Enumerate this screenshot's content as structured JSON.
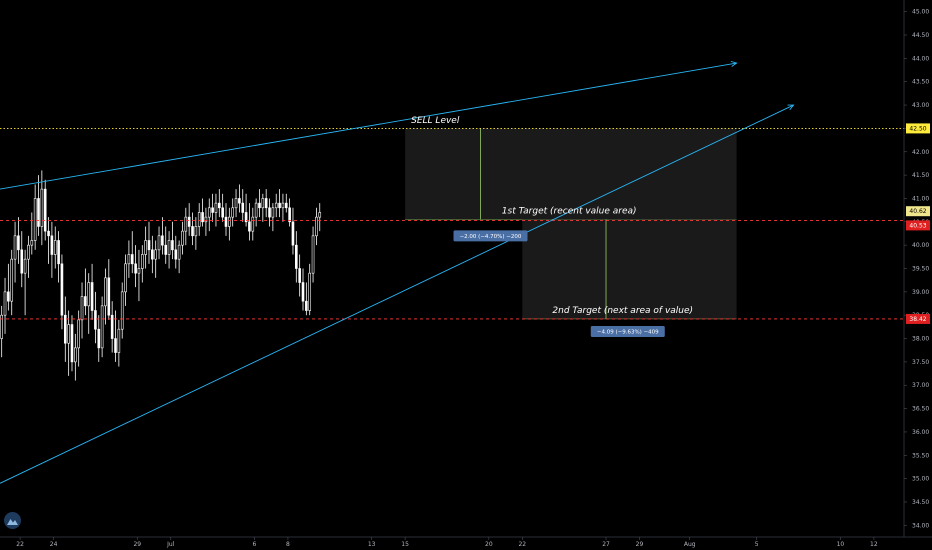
{
  "chart_data": {
    "type": "candlestick",
    "y_axis": {
      "position": "right",
      "range": [
        33.75,
        45.25
      ],
      "ticks": [
        "45.00",
        "44.50",
        "44.00",
        "43.50",
        "43.00",
        "42.50",
        "42.00",
        "41.50",
        "41.00",
        "40.50",
        "40.00",
        "39.50",
        "39.00",
        "38.50",
        "38.00",
        "37.50",
        "37.00",
        "36.50",
        "36.00",
        "35.50",
        "35.00",
        "34.50",
        "34.00"
      ]
    },
    "x_axis": {
      "ticks": [
        {
          "label": "22",
          "day": 22
        },
        {
          "label": "24",
          "day": 24
        },
        {
          "label": "29",
          "day": 29
        },
        {
          "label": "Jul",
          "day": 31
        },
        {
          "label": "6",
          "day": 36
        },
        {
          "label": "8",
          "day": 38
        },
        {
          "label": "13",
          "day": 43
        },
        {
          "label": "15",
          "day": 45
        },
        {
          "label": "20",
          "day": 50
        },
        {
          "label": "22",
          "day": 52
        },
        {
          "label": "27",
          "day": 57
        },
        {
          "label": "29",
          "day": 59
        },
        {
          "label": "Aug",
          "day": 62
        },
        {
          "label": "5",
          "day": 66
        },
        {
          "label": "10",
          "day": 71
        },
        {
          "label": "12",
          "day": 73
        }
      ],
      "range": [
        20.8,
        74.8
      ]
    },
    "candles": [
      {
        "day": 20.9,
        "o": 38.0,
        "h": 38.7,
        "l": 37.6,
        "c": 38.5
      },
      {
        "day": 21.1,
        "o": 38.5,
        "h": 39.3,
        "l": 38.1,
        "c": 39.0
      },
      {
        "day": 21.3,
        "o": 39.0,
        "h": 39.6,
        "l": 38.6,
        "c": 38.8
      },
      {
        "day": 21.5,
        "o": 38.8,
        "h": 39.9,
        "l": 38.5,
        "c": 39.7
      },
      {
        "day": 21.7,
        "o": 39.7,
        "h": 40.5,
        "l": 39.2,
        "c": 40.2
      },
      {
        "day": 21.9,
        "o": 40.2,
        "h": 40.6,
        "l": 39.6,
        "c": 39.9
      },
      {
        "day": 22.1,
        "o": 39.9,
        "h": 40.3,
        "l": 39.1,
        "c": 39.4
      },
      {
        "day": 22.3,
        "o": 39.4,
        "h": 39.9,
        "l": 38.5,
        "c": 39.7
      },
      {
        "day": 22.5,
        "o": 39.7,
        "h": 40.2,
        "l": 39.3,
        "c": 40.0
      },
      {
        "day": 22.7,
        "o": 40.0,
        "h": 40.7,
        "l": 39.8,
        "c": 40.1
      },
      {
        "day": 22.9,
        "o": 40.1,
        "h": 41.3,
        "l": 39.9,
        "c": 41.0
      },
      {
        "day": 23.1,
        "o": 41.0,
        "h": 41.5,
        "l": 40.2,
        "c": 40.4
      },
      {
        "day": 23.3,
        "o": 40.4,
        "h": 41.6,
        "l": 40.0,
        "c": 41.2
      },
      {
        "day": 23.5,
        "o": 41.2,
        "h": 41.4,
        "l": 40.1,
        "c": 40.3
      },
      {
        "day": 23.7,
        "o": 40.3,
        "h": 40.6,
        "l": 39.6,
        "c": 40.2
      },
      {
        "day": 23.9,
        "o": 40.2,
        "h": 40.5,
        "l": 39.3,
        "c": 39.8
      },
      {
        "day": 24.1,
        "o": 39.8,
        "h": 40.4,
        "l": 39.5,
        "c": 40.1
      },
      {
        "day": 24.3,
        "o": 40.1,
        "h": 40.3,
        "l": 39.2,
        "c": 39.6
      },
      {
        "day": 24.5,
        "o": 39.6,
        "h": 39.8,
        "l": 38.2,
        "c": 38.5
      },
      {
        "day": 24.7,
        "o": 38.5,
        "h": 38.9,
        "l": 37.5,
        "c": 37.9
      },
      {
        "day": 24.9,
        "o": 37.9,
        "h": 38.6,
        "l": 37.2,
        "c": 38.3
      },
      {
        "day": 25.1,
        "o": 38.3,
        "h": 38.5,
        "l": 37.3,
        "c": 37.5
      },
      {
        "day": 25.3,
        "o": 37.5,
        "h": 38.1,
        "l": 37.1,
        "c": 37.8
      },
      {
        "day": 25.5,
        "o": 37.8,
        "h": 38.6,
        "l": 37.4,
        "c": 38.4
      },
      {
        "day": 25.7,
        "o": 38.4,
        "h": 39.2,
        "l": 38.0,
        "c": 38.9
      },
      {
        "day": 25.9,
        "o": 38.9,
        "h": 39.5,
        "l": 38.5,
        "c": 38.7
      },
      {
        "day": 26.1,
        "o": 38.7,
        "h": 39.4,
        "l": 38.1,
        "c": 39.2
      },
      {
        "day": 26.3,
        "o": 39.2,
        "h": 39.6,
        "l": 38.4,
        "c": 38.6
      },
      {
        "day": 26.5,
        "o": 38.6,
        "h": 39.0,
        "l": 37.9,
        "c": 38.2
      },
      {
        "day": 26.7,
        "o": 38.2,
        "h": 38.5,
        "l": 37.5,
        "c": 37.8
      },
      {
        "day": 26.9,
        "o": 37.8,
        "h": 38.9,
        "l": 37.6,
        "c": 38.7
      },
      {
        "day": 27.1,
        "o": 38.7,
        "h": 39.5,
        "l": 38.3,
        "c": 39.3
      },
      {
        "day": 27.3,
        "o": 39.3,
        "h": 39.7,
        "l": 38.4,
        "c": 38.5
      },
      {
        "day": 27.5,
        "o": 38.5,
        "h": 38.8,
        "l": 37.7,
        "c": 38.0
      },
      {
        "day": 27.7,
        "o": 38.0,
        "h": 38.6,
        "l": 37.5,
        "c": 37.7
      },
      {
        "day": 27.9,
        "o": 37.7,
        "h": 38.4,
        "l": 37.4,
        "c": 38.2
      },
      {
        "day": 28.1,
        "o": 38.2,
        "h": 39.2,
        "l": 38.0,
        "c": 39.0
      },
      {
        "day": 28.3,
        "o": 39.0,
        "h": 39.8,
        "l": 38.7,
        "c": 39.6
      },
      {
        "day": 28.5,
        "o": 39.6,
        "h": 40.1,
        "l": 39.3,
        "c": 39.8
      },
      {
        "day": 28.7,
        "o": 39.8,
        "h": 40.3,
        "l": 39.4,
        "c": 39.6
      },
      {
        "day": 28.9,
        "o": 39.6,
        "h": 40.0,
        "l": 39.1,
        "c": 39.4
      },
      {
        "day": 29.1,
        "o": 39.4,
        "h": 39.9,
        "l": 38.8,
        "c": 39.5
      },
      {
        "day": 29.3,
        "o": 39.5,
        "h": 40.0,
        "l": 39.2,
        "c": 39.8
      },
      {
        "day": 29.5,
        "o": 39.8,
        "h": 40.4,
        "l": 39.5,
        "c": 40.1
      },
      {
        "day": 29.7,
        "o": 40.1,
        "h": 40.5,
        "l": 39.6,
        "c": 39.9
      },
      {
        "day": 29.9,
        "o": 39.9,
        "h": 40.2,
        "l": 39.4,
        "c": 39.7
      },
      {
        "day": 30.1,
        "o": 39.7,
        "h": 40.1,
        "l": 39.3,
        "c": 39.9
      },
      {
        "day": 30.3,
        "o": 39.9,
        "h": 40.4,
        "l": 39.7,
        "c": 40.2
      },
      {
        "day": 30.5,
        "o": 40.2,
        "h": 40.6,
        "l": 39.8,
        "c": 40.0
      },
      {
        "day": 30.7,
        "o": 40.0,
        "h": 40.4,
        "l": 39.6,
        "c": 39.8
      },
      {
        "day": 30.9,
        "o": 39.8,
        "h": 40.3,
        "l": 39.5,
        "c": 40.1
      },
      {
        "day": 31.1,
        "o": 40.1,
        "h": 40.5,
        "l": 39.7,
        "c": 39.9
      },
      {
        "day": 31.3,
        "o": 39.9,
        "h": 40.2,
        "l": 39.5,
        "c": 39.7
      },
      {
        "day": 31.5,
        "o": 39.7,
        "h": 40.1,
        "l": 39.4,
        "c": 40.0
      },
      {
        "day": 31.7,
        "o": 40.0,
        "h": 40.5,
        "l": 39.8,
        "c": 40.3
      },
      {
        "day": 31.9,
        "o": 40.3,
        "h": 40.8,
        "l": 40.0,
        "c": 40.6
      },
      {
        "day": 32.1,
        "o": 40.6,
        "h": 40.9,
        "l": 40.2,
        "c": 40.4
      },
      {
        "day": 32.3,
        "o": 40.4,
        "h": 40.7,
        "l": 40.0,
        "c": 40.2
      },
      {
        "day": 32.5,
        "o": 40.2,
        "h": 40.6,
        "l": 39.9,
        "c": 40.4
      },
      {
        "day": 32.7,
        "o": 40.4,
        "h": 40.9,
        "l": 40.2,
        "c": 40.7
      },
      {
        "day": 32.9,
        "o": 40.7,
        "h": 41.0,
        "l": 40.4,
        "c": 40.5
      },
      {
        "day": 33.1,
        "o": 40.5,
        "h": 40.8,
        "l": 40.2,
        "c": 40.6
      },
      {
        "day": 33.3,
        "o": 40.6,
        "h": 41.0,
        "l": 40.3,
        "c": 40.8
      },
      {
        "day": 33.5,
        "o": 40.8,
        "h": 41.1,
        "l": 40.5,
        "c": 40.7
      },
      {
        "day": 33.7,
        "o": 40.7,
        "h": 41.1,
        "l": 40.4,
        "c": 40.9
      },
      {
        "day": 33.9,
        "o": 40.9,
        "h": 41.2,
        "l": 40.6,
        "c": 40.8
      },
      {
        "day": 34.1,
        "o": 40.8,
        "h": 41.1,
        "l": 40.5,
        "c": 40.6
      },
      {
        "day": 34.3,
        "o": 40.6,
        "h": 40.9,
        "l": 40.2,
        "c": 40.4
      },
      {
        "day": 34.5,
        "o": 40.4,
        "h": 40.8,
        "l": 40.1,
        "c": 40.6
      },
      {
        "day": 34.7,
        "o": 40.6,
        "h": 41.0,
        "l": 40.4,
        "c": 40.8
      },
      {
        "day": 34.9,
        "o": 40.8,
        "h": 41.2,
        "l": 40.6,
        "c": 41.0
      },
      {
        "day": 35.1,
        "o": 41.0,
        "h": 41.3,
        "l": 40.7,
        "c": 40.9
      },
      {
        "day": 35.3,
        "o": 40.9,
        "h": 41.2,
        "l": 40.5,
        "c": 40.7
      },
      {
        "day": 35.5,
        "o": 40.7,
        "h": 41.1,
        "l": 40.4,
        "c": 40.5
      },
      {
        "day": 35.7,
        "o": 40.5,
        "h": 40.9,
        "l": 40.1,
        "c": 40.3
      },
      {
        "day": 35.9,
        "o": 40.3,
        "h": 40.8,
        "l": 40.1,
        "c": 40.6
      },
      {
        "day": 36.1,
        "o": 40.6,
        "h": 41.0,
        "l": 40.4,
        "c": 40.9
      },
      {
        "day": 36.3,
        "o": 40.9,
        "h": 41.2,
        "l": 40.6,
        "c": 40.8
      },
      {
        "day": 36.5,
        "o": 40.8,
        "h": 41.1,
        "l": 40.5,
        "c": 41.0
      },
      {
        "day": 36.7,
        "o": 41.0,
        "h": 41.2,
        "l": 40.6,
        "c": 40.8
      },
      {
        "day": 36.9,
        "o": 40.8,
        "h": 41.0,
        "l": 40.4,
        "c": 40.6
      },
      {
        "day": 37.1,
        "o": 40.6,
        "h": 40.9,
        "l": 40.3,
        "c": 40.8
      },
      {
        "day": 37.3,
        "o": 40.8,
        "h": 41.1,
        "l": 40.6,
        "c": 40.9
      },
      {
        "day": 37.5,
        "o": 40.9,
        "h": 41.2,
        "l": 40.6,
        "c": 40.8
      },
      {
        "day": 37.7,
        "o": 40.8,
        "h": 41.1,
        "l": 40.5,
        "c": 40.9
      },
      {
        "day": 37.9,
        "o": 40.9,
        "h": 41.1,
        "l": 40.7,
        "c": 40.8
      },
      {
        "day": 38.1,
        "o": 40.8,
        "h": 41.0,
        "l": 40.4,
        "c": 40.5
      },
      {
        "day": 38.3,
        "o": 40.5,
        "h": 40.8,
        "l": 39.8,
        "c": 40.0
      },
      {
        "day": 38.5,
        "o": 40.0,
        "h": 40.3,
        "l": 39.2,
        "c": 39.5
      },
      {
        "day": 38.7,
        "o": 39.5,
        "h": 39.8,
        "l": 38.9,
        "c": 39.2
      },
      {
        "day": 38.9,
        "o": 39.2,
        "h": 39.5,
        "l": 38.6,
        "c": 38.8
      },
      {
        "day": 39.1,
        "o": 38.8,
        "h": 39.2,
        "l": 38.5,
        "c": 38.6
      },
      {
        "day": 39.3,
        "o": 38.6,
        "h": 39.6,
        "l": 38.5,
        "c": 39.4
      },
      {
        "day": 39.5,
        "o": 39.4,
        "h": 40.4,
        "l": 39.2,
        "c": 40.2
      },
      {
        "day": 39.7,
        "o": 40.2,
        "h": 40.8,
        "l": 40.0,
        "c": 40.6
      },
      {
        "day": 39.9,
        "o": 40.6,
        "h": 40.9,
        "l": 40.3,
        "c": 40.7
      }
    ],
    "horizontal_lines": [
      {
        "value": 42.5,
        "color": "#ffeb3b",
        "style": "dotted",
        "label": "42.50",
        "tag_bg": "#ffeb3b",
        "tag_fg": "#000000"
      },
      {
        "value": 40.53,
        "color": "#ff3b3b",
        "style": "dashed",
        "label": "40.53",
        "tag_bg": "#e02020",
        "tag_fg": "#ffffff"
      },
      {
        "value": 38.42,
        "color": "#ff3b3b",
        "style": "dashed",
        "label": "38.42",
        "tag_bg": "#e02020",
        "tag_fg": "#ffffff"
      }
    ],
    "price_tag": {
      "value": 40.62,
      "label": "40.62",
      "tag_bg": "#f0e68c",
      "tag_fg": "#000000"
    },
    "trend_lines": [
      {
        "from": {
          "day": 20.8,
          "value": 41.2
        },
        "to": {
          "day": 64.8,
          "value": 43.9
        },
        "color": "#29b6f6",
        "arrow": true
      },
      {
        "from": {
          "day": 20.8,
          "value": 34.9
        },
        "to": {
          "day": 68.2,
          "value": 43.0
        },
        "color": "#29b6f6",
        "arrow": true
      }
    ],
    "zones": [
      {
        "from_day": 45.0,
        "to_day": 64.8,
        "top": 42.5,
        "bottom": 40.55,
        "split_day": 49.5,
        "fill": "#1a1a1a",
        "divider": "#9ccc65"
      },
      {
        "from_day": 52.0,
        "to_day": 64.8,
        "top": 40.55,
        "bottom": 38.42,
        "split_day": 57.0,
        "fill": "#1a1a1a",
        "divider": "#9ccc65"
      }
    ],
    "annotations": [
      {
        "text": "SELL Level",
        "day": 46.8,
        "value": 42.62
      },
      {
        "text": "1st Target (recent value area)",
        "day": 54.8,
        "value": 40.68
      },
      {
        "text": "2nd Target (next area of value)",
        "day": 58.0,
        "value": 38.55
      }
    ],
    "measure_labels": [
      {
        "text": "−2.00 (−4.70%) −200",
        "day": 50.1,
        "value": 40.2
      },
      {
        "text": "−4.09 (−9.63%) −409",
        "day": 58.3,
        "value": 38.15
      }
    ]
  }
}
